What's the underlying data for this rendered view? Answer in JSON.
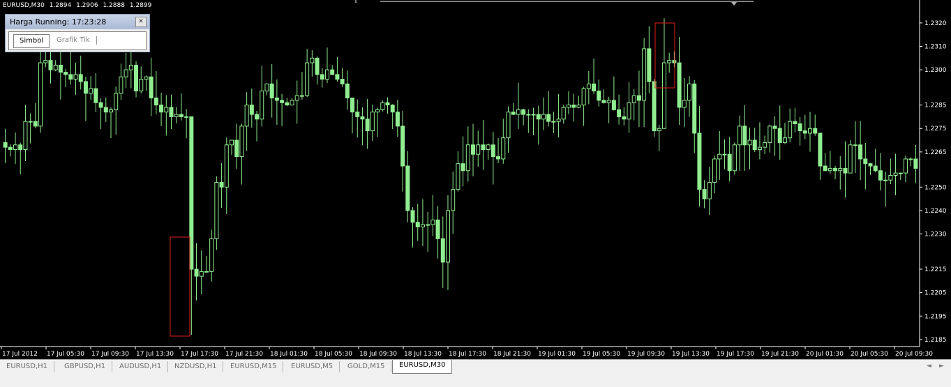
{
  "window": {
    "symbol": "EURUSD,M30",
    "ohlc": [
      "1.2894",
      "1.2906",
      "1.2888",
      "1.2899"
    ]
  },
  "price_window": {
    "title": "Harga Running: 17:23:28",
    "close_icon": "close-icon",
    "tabs": [
      "Simbol",
      "Grafik Tik"
    ]
  },
  "chart_data": {
    "type": "candlestick",
    "series_color": "#90ee90",
    "background": "#000000",
    "price_axis": {
      "min": 1.2182,
      "max": 1.2328,
      "ticks": [
        "1.2320",
        "1.2310",
        "1.2300",
        "1.2285",
        "1.2275",
        "1.2265",
        "1.2250",
        "1.2240",
        "1.2230",
        "1.2215",
        "1.2205",
        "1.2195",
        "1.2185"
      ]
    },
    "time_axis": {
      "labels": [
        "17 Jul 2012",
        "17 Jul 05:30",
        "17 Jul 09:30",
        "17 Jul 13:30",
        "17 Jul 17:30",
        "17 Jul 21:30",
        "18 Jul 01:30",
        "18 Jul 05:30",
        "18 Jul 09:30",
        "18 Jul 13:30",
        "18 Jul 17:30",
        "18 Jul 21:30",
        "19 Jul 01:30",
        "19 Jul 05:30",
        "19 Jul 09:30",
        "19 Jul 13:30",
        "19 Jul 17:30",
        "19 Jul 21:30",
        "20 Jul 01:30",
        "20 Jul 05:30",
        "20 Jul 09:30"
      ]
    },
    "close_path": [
      1.2267,
      1.2266,
      1.2268,
      1.2266,
      1.2278,
      1.2278,
      1.2276,
      1.2303,
      1.2304,
      1.23,
      1.2302,
      1.2299,
      1.2298,
      1.2296,
      1.2298,
      1.2295,
      1.229,
      1.2292,
      1.2286,
      1.2284,
      1.2282,
      1.2283,
      1.229,
      1.2297,
      1.23,
      1.2302,
      1.2291,
      1.2296,
      1.2297,
      1.2288,
      1.2285,
      1.2282,
      1.2284,
      1.228,
      1.2281,
      1.228,
      1.228,
      1.2215,
      1.2212,
      1.2214,
      1.2214,
      1.2228,
      1.2252,
      1.225,
      1.2268,
      1.227,
      1.2263,
      1.2276,
      1.2285,
      1.2281,
      1.2279,
      1.2291,
      1.2294,
      1.2288,
      1.2287,
      1.2286,
      1.2285,
      1.2287,
      1.2289,
      1.2289,
      1.2303,
      1.2305,
      1.2298,
      1.2296,
      1.23,
      1.2298,
      1.2296,
      1.2294,
      1.2288,
      1.2282,
      1.228,
      1.2279,
      1.2274,
      1.2282,
      1.2283,
      1.2286,
      1.2285,
      1.2282,
      1.2276,
      1.2259,
      1.224,
      1.2235,
      1.2233,
      1.2234,
      1.2234,
      1.2236,
      1.2228,
      1.2218,
      1.224,
      1.2249,
      1.226,
      1.2257,
      1.2268,
      1.2264,
      1.2268,
      1.2266,
      1.2268,
      1.2263,
      1.2262,
      1.2271,
      1.2282,
      1.2281,
      1.2283,
      1.2281,
      1.2281,
      1.2281,
      1.2279,
      1.2281,
      1.2278,
      1.2278,
      1.2279,
      1.2284,
      1.2285,
      1.2284,
      1.2285,
      1.2292,
      1.2294,
      1.2291,
      1.2287,
      1.2286,
      1.2287,
      1.2283,
      1.228,
      1.2279,
      1.2286,
      1.2289,
      1.2287,
      1.2309,
      1.2295,
      1.2274,
      1.2275,
      1.2303,
      1.2304,
      1.2303,
      1.2284,
      1.2287,
      1.2294,
      1.2273,
      1.2249,
      1.2245,
      1.2252,
      1.2262,
      1.2264,
      1.2264,
      1.2257,
      1.2268,
      1.2276,
      1.2268,
      1.227,
      1.2266,
      1.2267,
      1.2269,
      1.2276,
      1.2275,
      1.2269,
      1.2271,
      1.2278,
      1.2277,
      1.2274,
      1.2273,
      1.2275,
      1.2273,
      1.2259,
      1.2257,
      1.2258,
      1.2257,
      1.2258,
      1.2256,
      1.2268,
      1.2268,
      1.2262,
      1.226,
      1.2259,
      1.2257,
      1.2253,
      1.2253,
      1.2255,
      1.2256,
      1.2256,
      1.2262,
      1.2262,
      1.2258
    ],
    "highlights": [
      "17 Jul 15:30 low",
      "19 Jul 10:30 high"
    ]
  },
  "tab_bar": {
    "tabs": [
      "EURUSD,H1",
      "GBPUSD,H1",
      "AUDUSD,H1",
      "NZDUSD,H1",
      "EURUSD,M15",
      "EURUSD,M5",
      "GOLD,M15",
      "EURUSD,M30"
    ],
    "active": "EURUSD,M30",
    "scroll_left": "◄",
    "scroll_right": "►"
  }
}
